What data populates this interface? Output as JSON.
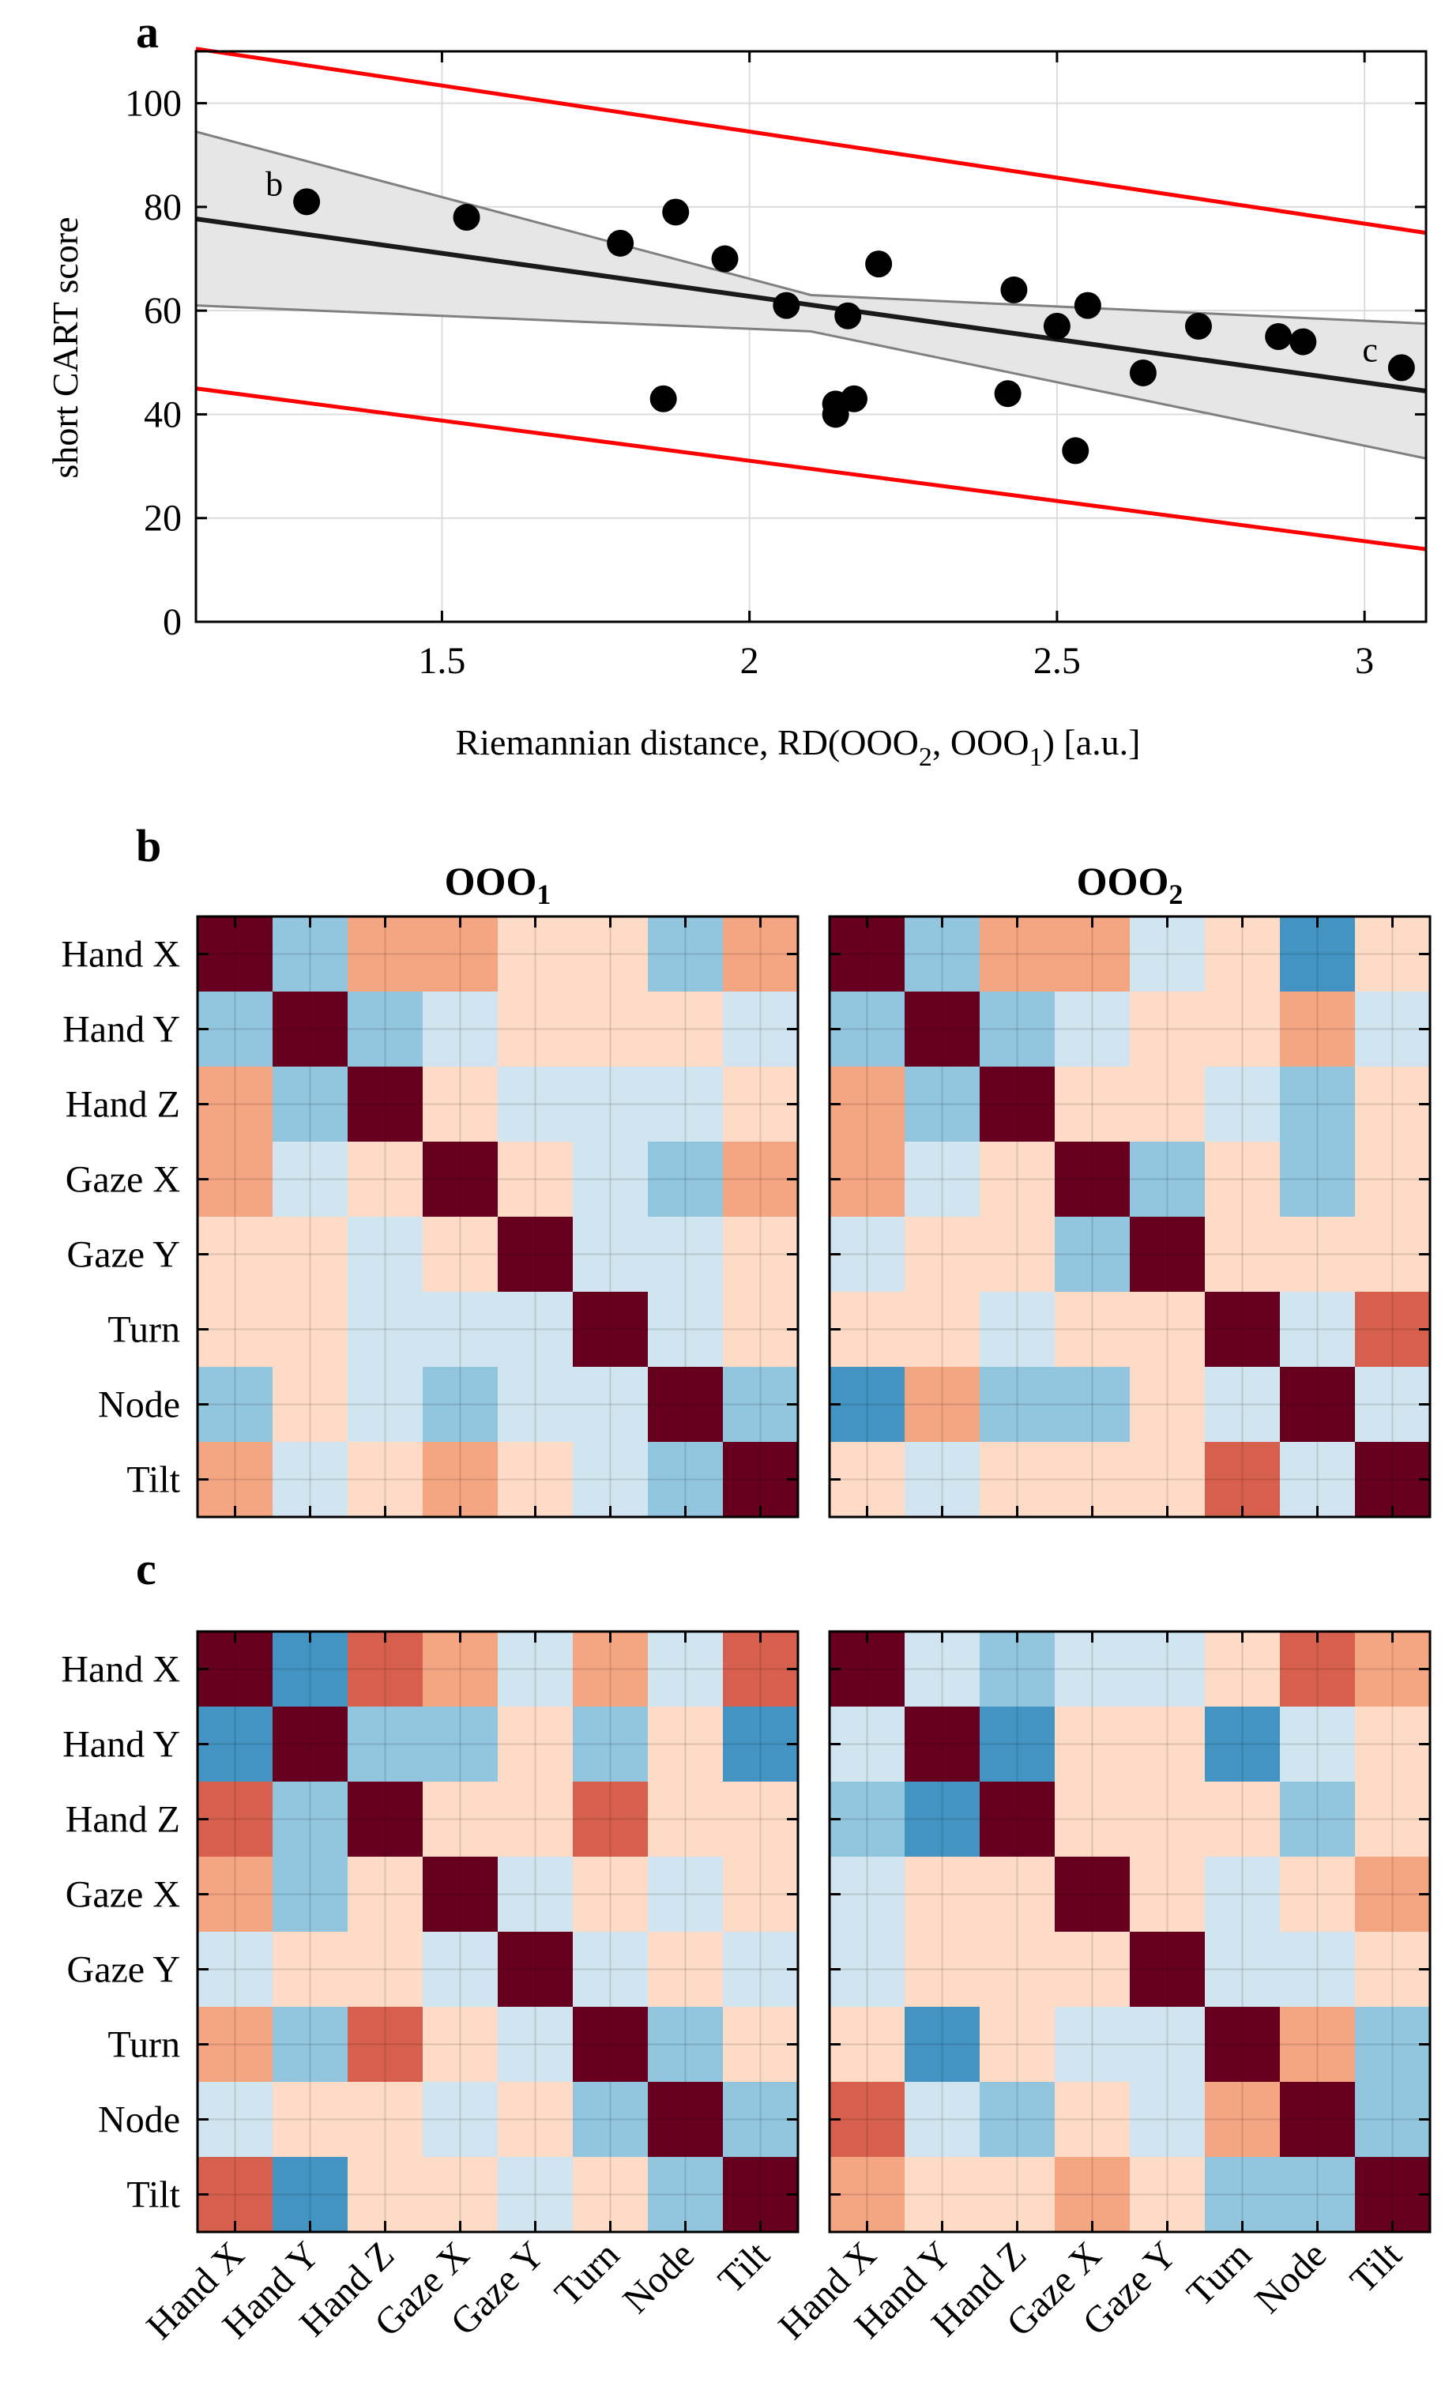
{
  "chart_data": [
    {
      "panel": "a",
      "type": "scatter",
      "xlabel": "Riemannian distance, RD(OOO",
      "xlabel_sub1": "2",
      "xlabel_mid": ", OOO",
      "xlabel_sub2": "1",
      "xlabel_end": ") [a.u.]",
      "ylabel": "short CART score",
      "xlim": [
        1.1,
        3.1
      ],
      "ylim": [
        0,
        110
      ],
      "xticks": [
        1.5,
        2,
        2.5,
        3
      ],
      "xtick_labels": [
        "1.5",
        "2",
        "2.5",
        "3"
      ],
      "yticks": [
        0,
        20,
        40,
        60,
        80,
        100
      ],
      "ytick_labels": [
        "0",
        "20",
        "40",
        "60",
        "80",
        "100"
      ],
      "grid": true,
      "points": [
        {
          "x": 1.28,
          "y": 81
        },
        {
          "x": 1.54,
          "y": 78
        },
        {
          "x": 1.79,
          "y": 73
        },
        {
          "x": 1.86,
          "y": 43
        },
        {
          "x": 1.88,
          "y": 79
        },
        {
          "x": 1.96,
          "y": 70
        },
        {
          "x": 2.06,
          "y": 61
        },
        {
          "x": 2.14,
          "y": 40
        },
        {
          "x": 2.14,
          "y": 42
        },
        {
          "x": 2.16,
          "y": 59
        },
        {
          "x": 2.17,
          "y": 43
        },
        {
          "x": 2.21,
          "y": 69
        },
        {
          "x": 2.42,
          "y": 44
        },
        {
          "x": 2.43,
          "y": 64
        },
        {
          "x": 2.5,
          "y": 57
        },
        {
          "x": 2.53,
          "y": 33
        },
        {
          "x": 2.55,
          "y": 61
        },
        {
          "x": 2.64,
          "y": 48
        },
        {
          "x": 2.73,
          "y": 57
        },
        {
          "x": 2.86,
          "y": 55
        },
        {
          "x": 2.9,
          "y": 54
        },
        {
          "x": 3.06,
          "y": 49
        }
      ],
      "point_annotations": [
        {
          "label": "b",
          "x": 1.28,
          "y": 81
        },
        {
          "label": "c",
          "x": 3.06,
          "y": 49
        }
      ],
      "fit_line": {
        "x": [
          1.1,
          3.1
        ],
        "y": [
          77.7,
          44.5
        ]
      },
      "confidence_band": {
        "x": [
          1.1,
          2.1,
          3.1
        ],
        "lower": [
          61,
          56,
          31.5
        ],
        "upper": [
          94.5,
          63,
          57.5
        ]
      },
      "prediction_band": {
        "x": [
          1.1,
          3.1
        ],
        "lower": [
          45,
          14
        ],
        "upper": [
          110.5,
          75
        ]
      },
      "colors": {
        "points": "#000000",
        "fit": "#1a1a1a",
        "band_fill": "#e6e6e6",
        "band_edge": "#808080",
        "prediction": "#ff0000"
      }
    },
    {
      "panel": "b",
      "type": "heatmap",
      "labels": [
        "Hand X",
        "Hand Y",
        "Hand Z",
        "Gaze X",
        "Gaze Y",
        "Turn",
        "Node",
        "Tilt"
      ],
      "color_levels": [
        "#2166ac",
        "#4393c3",
        "#92c5de",
        "#d1e5f0",
        "#fddbc7",
        "#f4a582",
        "#d6604d",
        "#67001f"
      ],
      "matrices": [
        {
          "title": "OOO",
          "title_sub": "1",
          "levels": [
            [
              7,
              2,
              5,
              5,
              4,
              4,
              2,
              5
            ],
            [
              2,
              7,
              2,
              3,
              4,
              4,
              4,
              3
            ],
            [
              5,
              2,
              7,
              4,
              3,
              3,
              3,
              4
            ],
            [
              5,
              3,
              4,
              7,
              4,
              3,
              2,
              5
            ],
            [
              4,
              4,
              3,
              4,
              7,
              3,
              3,
              4
            ],
            [
              4,
              4,
              3,
              3,
              3,
              7,
              3,
              4
            ],
            [
              2,
              4,
              3,
              2,
              3,
              3,
              7,
              2
            ],
            [
              5,
              3,
              4,
              5,
              4,
              3,
              2,
              7
            ]
          ]
        },
        {
          "title": "OOO",
          "title_sub": "2",
          "levels": [
            [
              7,
              2,
              5,
              5,
              3,
              4,
              1,
              4
            ],
            [
              2,
              7,
              2,
              3,
              4,
              4,
              5,
              3
            ],
            [
              5,
              2,
              7,
              4,
              4,
              3,
              2,
              4
            ],
            [
              5,
              3,
              4,
              7,
              2,
              4,
              2,
              4
            ],
            [
              3,
              4,
              4,
              2,
              7,
              4,
              4,
              4
            ],
            [
              4,
              4,
              3,
              4,
              4,
              7,
              3,
              6
            ],
            [
              1,
              5,
              2,
              2,
              4,
              3,
              7,
              3
            ],
            [
              4,
              3,
              4,
              4,
              4,
              6,
              3,
              7
            ]
          ]
        }
      ]
    },
    {
      "panel": "c",
      "type": "heatmap",
      "labels": [
        "Hand X",
        "Hand Y",
        "Hand Z",
        "Gaze X",
        "Gaze Y",
        "Turn",
        "Node",
        "Tilt"
      ],
      "color_levels": [
        "#2166ac",
        "#4393c3",
        "#92c5de",
        "#d1e5f0",
        "#fddbc7",
        "#f4a582",
        "#d6604d",
        "#67001f"
      ],
      "matrices": [
        {
          "title": "",
          "title_sub": "",
          "levels": [
            [
              7,
              1,
              6,
              5,
              3,
              5,
              3,
              6
            ],
            [
              1,
              7,
              2,
              2,
              4,
              2,
              4,
              1
            ],
            [
              6,
              2,
              7,
              4,
              4,
              6,
              4,
              4
            ],
            [
              5,
              2,
              4,
              7,
              3,
              4,
              3,
              4
            ],
            [
              3,
              4,
              4,
              3,
              7,
              3,
              4,
              3
            ],
            [
              5,
              2,
              6,
              4,
              3,
              7,
              2,
              4
            ],
            [
              3,
              4,
              4,
              3,
              4,
              2,
              7,
              2
            ],
            [
              6,
              1,
              4,
              4,
              3,
              4,
              2,
              7
            ]
          ]
        },
        {
          "title": "",
          "title_sub": "",
          "levels": [
            [
              7,
              3,
              2,
              3,
              3,
              4,
              6,
              5
            ],
            [
              3,
              7,
              1,
              4,
              4,
              1,
              3,
              4
            ],
            [
              2,
              1,
              7,
              4,
              4,
              4,
              2,
              4
            ],
            [
              3,
              4,
              4,
              7,
              4,
              3,
              4,
              5
            ],
            [
              3,
              4,
              4,
              4,
              7,
              3,
              3,
              4
            ],
            [
              4,
              1,
              4,
              3,
              3,
              7,
              5,
              2
            ],
            [
              6,
              3,
              2,
              4,
              3,
              5,
              7,
              2
            ],
            [
              5,
              4,
              4,
              5,
              4,
              2,
              2,
              7
            ]
          ]
        }
      ]
    }
  ],
  "panel_letters": {
    "a": "a",
    "b": "b",
    "c": "c"
  }
}
